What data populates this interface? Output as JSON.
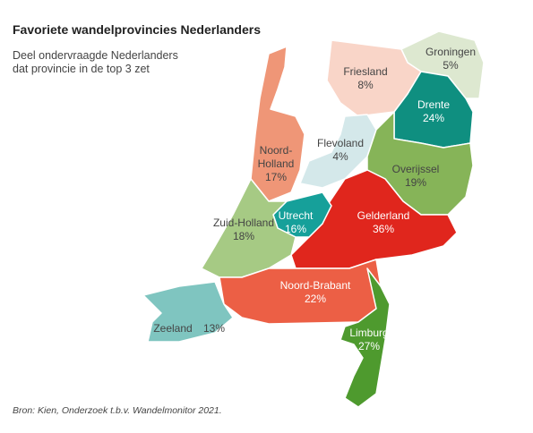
{
  "chart_data": {
    "type": "map",
    "title": "Favoriete wandelprovincies Nederlanders",
    "subtitle": "Deel ondervraagde Nederlanders dat provincie in de top 3 zet",
    "source": "Bron: Kien, Onderzoek t.b.v. Wandelmonitor 2021.",
    "categories": [
      "Groningen",
      "Friesland",
      "Drente",
      "Flevoland",
      "Noord-Holland",
      "Overijssel",
      "Gelderland",
      "Utrecht",
      "Zuid-Holland",
      "Noord-Brabant",
      "Zeeland",
      "Limburg"
    ],
    "values": [
      5,
      8,
      24,
      4,
      17,
      19,
      36,
      16,
      18,
      22,
      13,
      27
    ],
    "value_labels": [
      "5%",
      "8%",
      "24%",
      "4%",
      "17%",
      "19%",
      "36%",
      "16%",
      "18%",
      "22%",
      "13%",
      "27%"
    ],
    "colors": [
      "#dde8d0",
      "#f9d5c8",
      "#0f8f80",
      "#d4e8ea",
      "#ef9677",
      "#86b458",
      "#e0261d",
      "#16a09a",
      "#a6ca84",
      "#ec5f45",
      "#7fc5c0",
      "#4e9a2e"
    ]
  }
}
